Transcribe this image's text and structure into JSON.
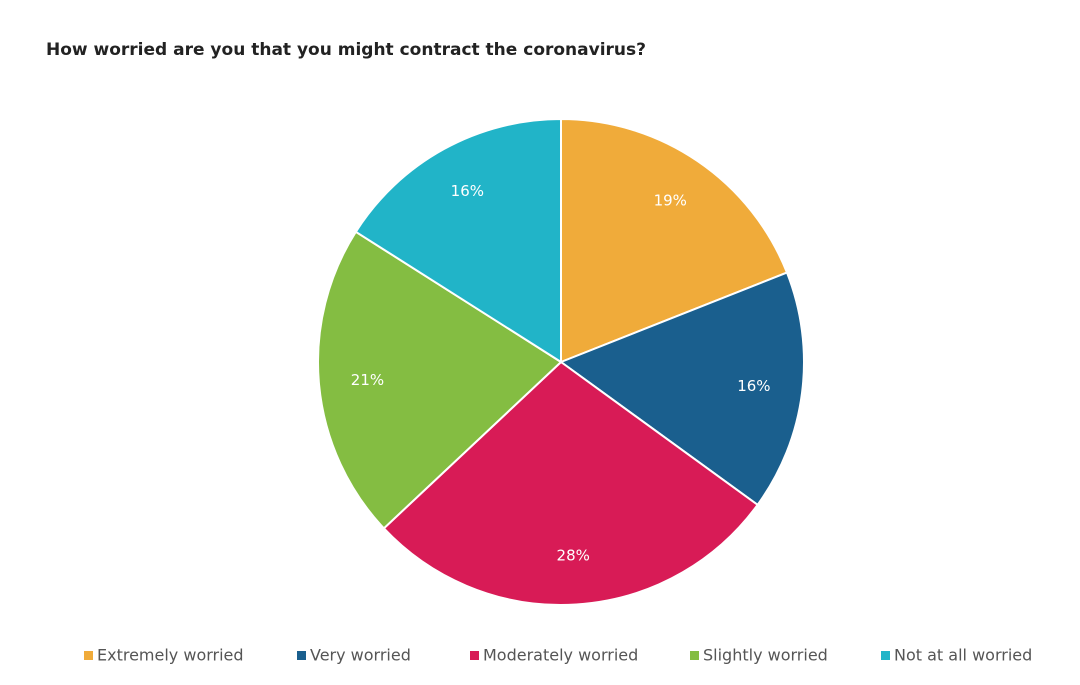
{
  "chart_data": {
    "type": "pie",
    "title": "How worried are you that you might contract the coronavirus?",
    "categories": [
      "Extremely worried",
      "Very worried",
      "Moderately worried",
      "Slightly worried",
      "Not at all worried"
    ],
    "values": [
      19,
      16,
      28,
      21,
      16
    ],
    "value_labels": [
      "19%",
      "16%",
      "28%",
      "21%",
      "16%"
    ],
    "colors": [
      "#f0ab3a",
      "#1a5f8e",
      "#d81b56",
      "#84bd42",
      "#21b4c8"
    ],
    "legend": "bottom"
  }
}
